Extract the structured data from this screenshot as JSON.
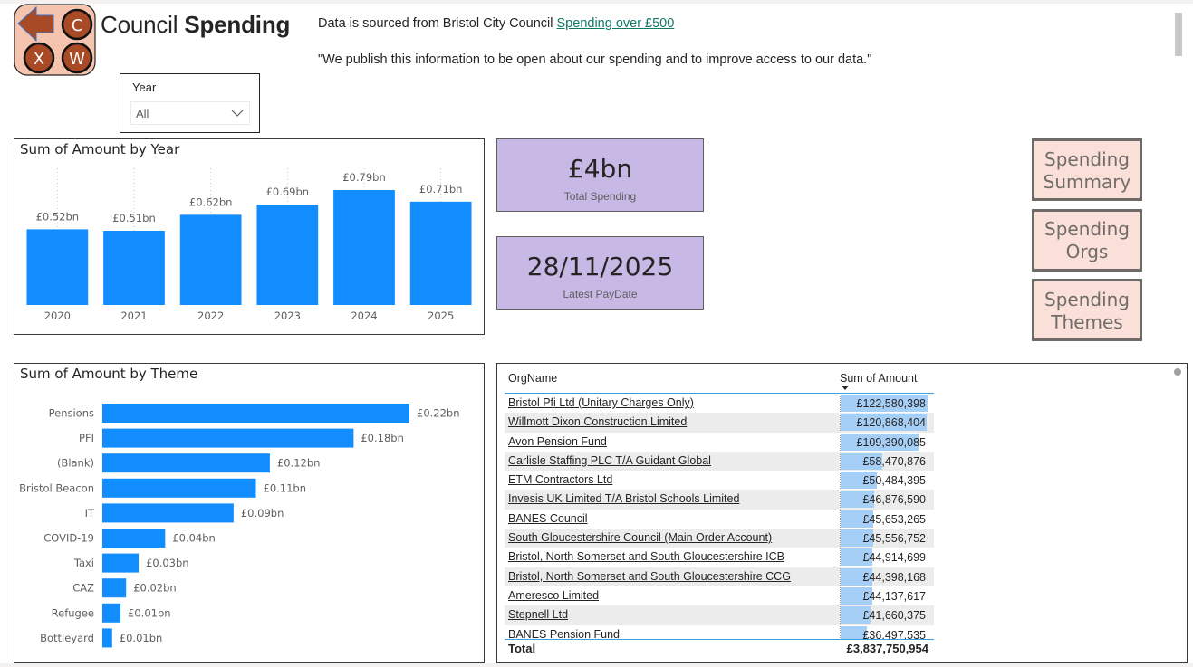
{
  "header": {
    "title_light": "Council",
    "title_bold": "Spending",
    "logo": {
      "letters": [
        "C",
        "X",
        "W"
      ],
      "icon": "back-arrow-icon",
      "bg_color": "#f4c4ae",
      "accent_color": "#a84a25"
    },
    "source_prefix": "Data is sourced from Bristol City Council",
    "source_link": "Spending over £500",
    "quote": "\"We publish this information to be open about our spending and to improve access to our data.\""
  },
  "slicer": {
    "label": "Year",
    "selected": "All",
    "icon": "chevron-down-icon"
  },
  "kpis": [
    {
      "value": "£4bn",
      "caption": "Total Spending"
    },
    {
      "value": "28/11/2025",
      "caption": "Latest PayDate"
    }
  ],
  "nav_buttons": [
    {
      "line1": "Spending",
      "line2": "Summary"
    },
    {
      "line1": "Spending",
      "line2": "Orgs"
    },
    {
      "line1": "Spending",
      "line2": "Themes"
    }
  ],
  "colors": {
    "bar": "#118dff",
    "kpi_bg": "#c7b8e6",
    "nav_bg": "#fae0d8",
    "link": "#117865",
    "table_bar": "#a6cff7"
  },
  "chart_data": [
    {
      "type": "bar",
      "title": "Sum of Amount by Year",
      "xlabel": "",
      "ylabel": "",
      "categories": [
        "2020",
        "2021",
        "2022",
        "2023",
        "2024",
        "2025"
      ],
      "values": [
        0.52,
        0.51,
        0.62,
        0.69,
        0.79,
        0.71
      ],
      "labels": [
        "£0.52bn",
        "£0.51bn",
        "£0.62bn",
        "£0.69bn",
        "£0.79bn",
        "£0.71bn"
      ],
      "unit": "£bn",
      "ylim": [
        0,
        0.85
      ],
      "grid": false
    },
    {
      "type": "bar",
      "orientation": "horizontal",
      "title": "Sum of Amount by Theme",
      "xlabel": "",
      "ylabel": "",
      "categories": [
        "Pensions",
        "PFI",
        "(Blank)",
        "Bristol Beacon",
        "IT",
        "COVID-19",
        "Taxi",
        "CAZ",
        "Refugee",
        "Bottleyard"
      ],
      "values": [
        0.22,
        0.18,
        0.12,
        0.11,
        0.094,
        0.045,
        0.026,
        0.017,
        0.013,
        0.007
      ],
      "labels": [
        "£0.22bn",
        "£0.18bn",
        "£0.12bn",
        "£0.11bn",
        "£0.09bn",
        "£0.04bn",
        "£0.03bn",
        "£0.02bn",
        "£0.01bn",
        "£0.01bn"
      ],
      "unit": "£bn",
      "xlim": [
        0,
        0.22
      ],
      "grid": false
    }
  ],
  "org_table": {
    "columns": [
      "OrgName",
      "Sum of Amount"
    ],
    "sort": "descending by Sum of Amount",
    "rows": [
      {
        "org": "Bristol Pfi Ltd (Unitary Charges Only)",
        "amount": "£122,580,398",
        "value": 122580398
      },
      {
        "org": "Willmott Dixon Construction Limited",
        "amount": "£120,868,404",
        "value": 120868404
      },
      {
        "org": "Avon Pension Fund",
        "amount": "£109,390,085",
        "value": 109390085
      },
      {
        "org": "Carlisle Staffing PLC T/A Guidant Global",
        "amount": "£58,470,876",
        "value": 58470876
      },
      {
        "org": "ETM Contractors Ltd",
        "amount": "£50,484,395",
        "value": 50484395
      },
      {
        "org": "Invesis UK Limited T/A Bristol Schools Limited",
        "amount": "£46,876,590",
        "value": 46876590
      },
      {
        "org": "BANES Council",
        "amount": "£45,653,265",
        "value": 45653265
      },
      {
        "org": "South Gloucestershire Council (Main Order Account)",
        "amount": "£45,556,752",
        "value": 45556752
      },
      {
        "org": "Bristol, North Somerset and South Gloucestershire ICB",
        "amount": "£44,914,699",
        "value": 44914699
      },
      {
        "org": "Bristol, North Somerset and South Gloucestershire CCG",
        "amount": "£44,398,168",
        "value": 44398168
      },
      {
        "org": "Ameresco Limited",
        "amount": "£44,137,617",
        "value": 44137617
      },
      {
        "org": "Stepnell Ltd",
        "amount": "£41,660,375",
        "value": 41660375
      },
      {
        "org": "BANES Pension Fund",
        "amount": "£36,497,535",
        "value": 36497535
      }
    ],
    "total_label": "Total",
    "total_amount": "£3,837,750,954"
  }
}
